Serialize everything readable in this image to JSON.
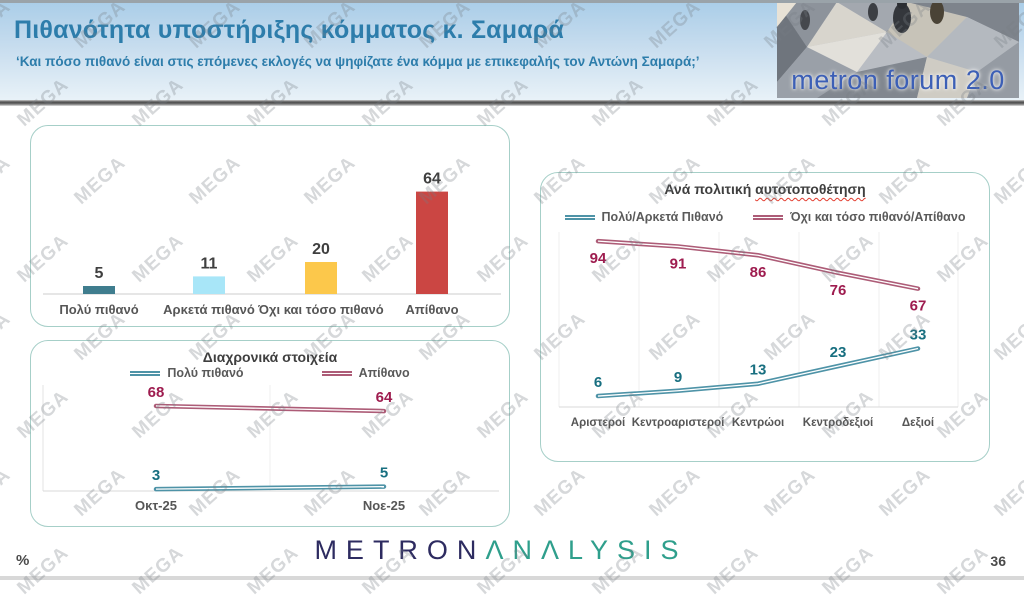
{
  "header": {
    "title": "Πιθανότητα υποστήριξης κόμματος κ. Σαμαρά",
    "subtitle": "‘Και πόσο πιθανό είναι στις επόμενες εκλογές να ψηφίζατε ένα κόμμα με επικεφαλής τον Αντώνη Σαμαρά;’",
    "logo_text": "metron forum 2.0"
  },
  "watermark": {
    "text": "MEGA"
  },
  "footer": {
    "percent_label": "%",
    "logo_metron": "METRON",
    "logo_analysis": "ΛNΛLYSIS",
    "page_number": "36"
  },
  "colors": {
    "header_text": "#2d7dab",
    "panel_border": "#a6cfc8",
    "teal_line": "#4e93a7",
    "teal_label": "#186f80",
    "maroon_line": "#ad5c77",
    "maroon_label": "#9e1c4f",
    "axis_gray": "#cccccc"
  },
  "chart_data": [
    {
      "id": "likelihood-bars",
      "type": "bar",
      "categories": [
        "Πολύ πιθανό",
        "Αρκετά πιθανό",
        "Όχι και τόσο πιθανό",
        "Απίθανο"
      ],
      "values": [
        5,
        11,
        20,
        64
      ],
      "colors": [
        "#3f7d8e",
        "#a8e6f8",
        "#fcc84b",
        "#cb4643"
      ],
      "title": "",
      "xlabel": "",
      "ylabel": "",
      "ylim": [
        0,
        100
      ],
      "grid": false,
      "data_labels": true
    },
    {
      "id": "trend",
      "type": "line",
      "title": "Διαχρονικά στοιχεία",
      "categories": [
        "Οκτ-25",
        "Νοε-25"
      ],
      "series": [
        {
          "name": "Πολύ πιθανό",
          "values": [
            3,
            5
          ],
          "color": "#4e93a7",
          "label_color": "#186f80",
          "label_side": "above"
        },
        {
          "name": "Απίθανο",
          "values": [
            68,
            64
          ],
          "color": "#ad5c77",
          "label_color": "#9e1c4f",
          "label_side": "above"
        }
      ],
      "ylim": [
        0,
        100
      ],
      "grid": true,
      "legend_position": "top",
      "data_labels": true
    },
    {
      "id": "self-placement",
      "type": "line",
      "title": "Ανά πολιτική αυτοτοποθέτηση",
      "title_prefix": "Ανά πολιτική ",
      "title_underlined": "αυτοτοποθέτηση",
      "categories": [
        "Αριστεροί",
        "Κεντροαριστεροί",
        "Κεντρώοι",
        "Κεντροδεξιοί",
        "Δεξιοί"
      ],
      "series": [
        {
          "name": "Πολύ/Αρκετά Πιθανό",
          "values": [
            6,
            9,
            13,
            23,
            33
          ],
          "color": "#4e93a7",
          "label_color": "#186f80",
          "label_side": "above"
        },
        {
          "name": "Όχι και τόσο πιθανό/Απίθανο",
          "values": [
            94,
            91,
            86,
            76,
            67
          ],
          "color": "#ad5c77",
          "label_color": "#9e1c4f",
          "label_side": "below"
        }
      ],
      "ylim": [
        0,
        100
      ],
      "grid": true,
      "legend_position": "top",
      "data_labels": true
    }
  ]
}
